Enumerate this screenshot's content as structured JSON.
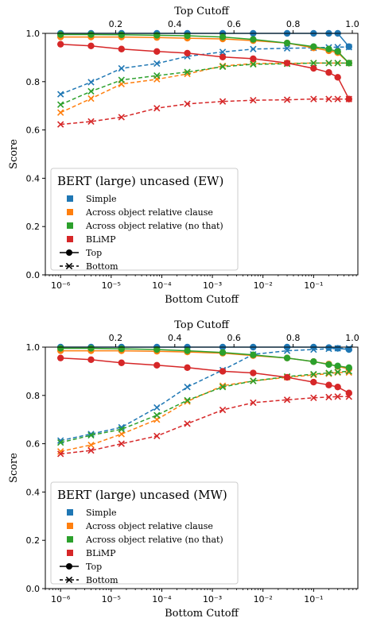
{
  "chart_data": [
    {
      "type": "line",
      "title": "",
      "xlabel": "Bottom Cutoff",
      "ylabel": "Score",
      "top_xlabel": "Top Cutoff",
      "x_scale": "log",
      "xlim": [
        5e-07,
        0.75
      ],
      "ylim": [
        0.0,
        1.0
      ],
      "x_ticks": [
        "10⁻⁶",
        "10⁻⁵",
        "10⁻⁴",
        "10⁻³",
        "10⁻²",
        "10⁻¹"
      ],
      "y_ticks": [
        "0.0",
        "0.2",
        "0.4",
        "0.6",
        "0.8",
        "1.0"
      ],
      "top_x_ticks": [
        "0.2",
        "0.4",
        "0.6",
        "0.8",
        "1.0"
      ],
      "grid": false,
      "legend": {
        "title": "BERT (large) uncased (EW)",
        "placement": "lower-left",
        "items": [
          "Simple",
          "Across object relative clause",
          "Across object relative (no that)",
          "BLiMP",
          "Top",
          "Bottom"
        ]
      },
      "x": [
        1e-06,
        4e-06,
        1.6e-05,
        8e-05,
        0.00032,
        0.0016,
        0.0064,
        0.03,
        0.1,
        0.2,
        0.3,
        0.5
      ],
      "series": [
        {
          "name": "Simple",
          "color": "#1f77b4",
          "top": [
            1.0,
            1.0,
            1.0,
            1.0,
            1.0,
            1.0,
            1.0,
            1.0,
            1.0,
            1.0,
            1.0,
            0.945
          ],
          "bottom": [
            0.748,
            0.798,
            0.855,
            0.875,
            0.905,
            0.923,
            0.935,
            0.938,
            0.94,
            0.942,
            0.943,
            0.943
          ]
        },
        {
          "name": "Across object relative clause",
          "color": "#ff7f0e",
          "top": [
            0.985,
            0.985,
            0.985,
            0.983,
            0.98,
            0.977,
            0.97,
            0.96,
            0.94,
            0.928,
            0.92,
            0.877
          ],
          "bottom": [
            0.672,
            0.73,
            0.79,
            0.81,
            0.832,
            0.865,
            0.875,
            0.876,
            0.877,
            0.877,
            0.877,
            0.877
          ]
        },
        {
          "name": "Across object relative (no that)",
          "color": "#2ca02c",
          "top": [
            0.995,
            0.995,
            0.994,
            0.992,
            0.99,
            0.985,
            0.975,
            0.96,
            0.945,
            0.935,
            0.925,
            0.877
          ],
          "bottom": [
            0.705,
            0.76,
            0.807,
            0.825,
            0.84,
            0.862,
            0.872,
            0.874,
            0.877,
            0.877,
            0.877,
            0.877
          ]
        },
        {
          "name": "BLiMP",
          "color": "#d62728",
          "top": [
            0.955,
            0.948,
            0.935,
            0.925,
            0.918,
            0.902,
            0.895,
            0.877,
            0.855,
            0.838,
            0.818,
            0.728
          ],
          "bottom": [
            0.623,
            0.635,
            0.653,
            0.69,
            0.708,
            0.718,
            0.723,
            0.725,
            0.728,
            0.728,
            0.728,
            0.728
          ]
        }
      ]
    },
    {
      "type": "line",
      "title": "",
      "xlabel": "Bottom Cutoff",
      "ylabel": "Score",
      "top_xlabel": "Top Cutoff",
      "x_scale": "log",
      "xlim": [
        5e-07,
        0.75
      ],
      "ylim": [
        0.0,
        1.0
      ],
      "x_ticks": [
        "10⁻⁶",
        "10⁻⁵",
        "10⁻⁴",
        "10⁻³",
        "10⁻²",
        "10⁻¹"
      ],
      "y_ticks": [
        "0.0",
        "0.2",
        "0.4",
        "0.6",
        "0.8",
        "1.0"
      ],
      "top_x_ticks": [
        "0.2",
        "0.4",
        "0.6",
        "0.8",
        "1.0"
      ],
      "grid": false,
      "legend": {
        "title": "BERT (large) uncased (MW)",
        "placement": "lower-left",
        "items": [
          "Simple",
          "Across object relative clause",
          "Across object relative (no that)",
          "BLiMP",
          "Top",
          "Bottom"
        ]
      },
      "x": [
        1e-06,
        4e-06,
        1.6e-05,
        8e-05,
        0.00032,
        0.0016,
        0.0064,
        0.03,
        0.1,
        0.2,
        0.3,
        0.5
      ],
      "series": [
        {
          "name": "Simple",
          "color": "#1f77b4",
          "top": [
            1.0,
            1.0,
            1.0,
            1.0,
            1.0,
            1.0,
            1.0,
            1.0,
            1.0,
            0.998,
            0.995,
            0.99
          ],
          "bottom": [
            0.613,
            0.64,
            0.668,
            0.75,
            0.835,
            0.905,
            0.97,
            0.985,
            0.99,
            0.993,
            0.995,
            0.995
          ]
        },
        {
          "name": "Across object relative clause",
          "color": "#ff7f0e",
          "top": [
            0.985,
            0.985,
            0.985,
            0.983,
            0.98,
            0.975,
            0.965,
            0.955,
            0.94,
            0.93,
            0.92,
            0.91
          ],
          "bottom": [
            0.568,
            0.595,
            0.64,
            0.7,
            0.775,
            0.84,
            0.86,
            0.875,
            0.885,
            0.89,
            0.895,
            0.895
          ]
        },
        {
          "name": "Across object relative (no that)",
          "color": "#2ca02c",
          "top": [
            0.995,
            0.995,
            0.993,
            0.99,
            0.985,
            0.978,
            0.968,
            0.955,
            0.94,
            0.928,
            0.922,
            0.915
          ],
          "bottom": [
            0.605,
            0.635,
            0.66,
            0.718,
            0.78,
            0.835,
            0.86,
            0.878,
            0.888,
            0.893,
            0.897,
            0.9
          ]
        },
        {
          "name": "BLiMP",
          "color": "#d62728",
          "top": [
            0.955,
            0.948,
            0.935,
            0.925,
            0.915,
            0.9,
            0.893,
            0.875,
            0.855,
            0.843,
            0.835,
            0.81
          ],
          "bottom": [
            0.558,
            0.572,
            0.6,
            0.632,
            0.683,
            0.74,
            0.77,
            0.782,
            0.79,
            0.793,
            0.795,
            0.795
          ]
        }
      ]
    }
  ]
}
